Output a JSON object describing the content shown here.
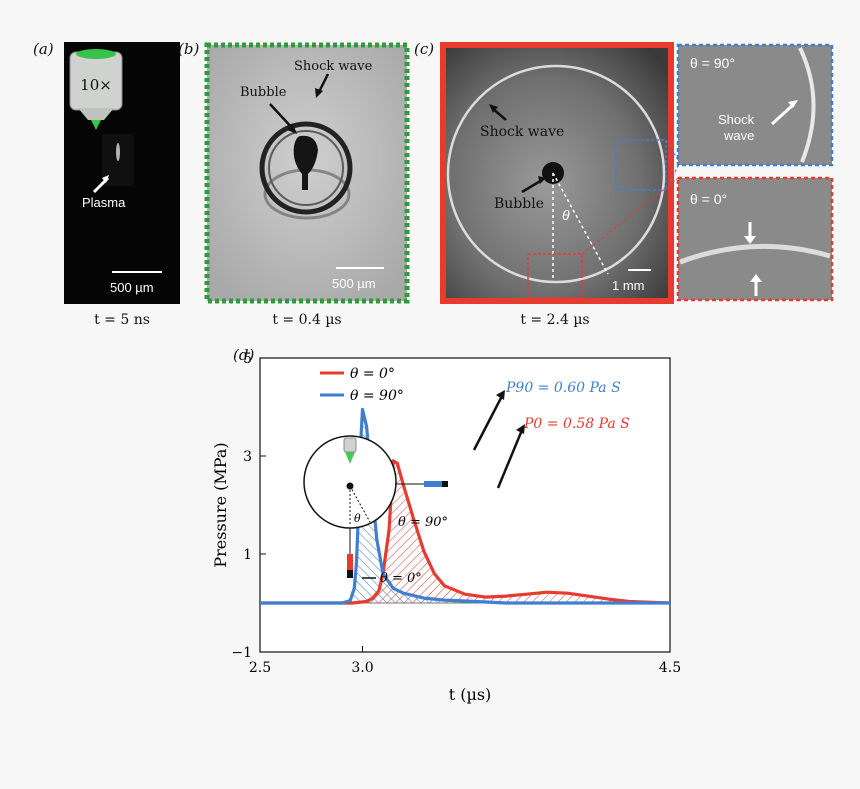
{
  "panels": {
    "a": {
      "label": "(a)",
      "objective": "10×",
      "plasma": "Plasma",
      "scale": "500 µm",
      "time": "t = 5 ns"
    },
    "b": {
      "label": "(b)",
      "shock": "Shock wave",
      "bubble": "Bubble",
      "scale": "500 µm",
      "time": "t = 0.4 µs"
    },
    "c": {
      "label": "(c)",
      "shock": "Shock wave",
      "bubble": "Bubble",
      "theta": "θ",
      "scale": "1 mm",
      "time": "t = 2.4 µs",
      "inset_top_angle": "θ = 90°",
      "inset_top_label_1": "Shock",
      "inset_top_label_2": "wave",
      "inset_bottom_angle": "θ = 0°"
    },
    "d": {
      "label": "(d)"
    }
  },
  "colors": {
    "series_0": "#e63b2e",
    "series_90": "#3f7fd0",
    "green": "#2e9c3c",
    "red_frame": "#e63b2e"
  },
  "chart_data": {
    "type": "line",
    "xlabel": "t (µs)",
    "ylabel": "Pressure (MPa)",
    "xlim": [
      2.5,
      4.5
    ],
    "ylim": [
      -1,
      5
    ],
    "xticks": [
      "2.5",
      "3.0",
      "4.5"
    ],
    "yticks": [
      "−1",
      "1",
      "3",
      "5"
    ],
    "legend_position": "top-left",
    "series": [
      {
        "name": "θ = 0°",
        "color": "#e63b2e",
        "x": [
          2.5,
          2.95,
          3.02,
          3.05,
          3.08,
          3.1,
          3.13,
          3.15,
          3.17,
          3.2,
          3.25,
          3.3,
          3.35,
          3.4,
          3.5,
          3.6,
          3.7,
          3.8,
          3.9,
          4.0,
          4.1,
          4.2,
          4.3,
          4.5
        ],
        "y": [
          0.0,
          0.0,
          0.03,
          0.1,
          0.25,
          0.6,
          1.5,
          2.9,
          2.85,
          2.4,
          1.7,
          1.05,
          0.6,
          0.35,
          0.18,
          0.12,
          0.14,
          0.18,
          0.22,
          0.2,
          0.14,
          0.08,
          0.03,
          0.0
        ]
      },
      {
        "name": "θ = 90°",
        "color": "#3f7fd0",
        "x": [
          2.5,
          2.9,
          2.94,
          2.96,
          2.97,
          2.98,
          2.99,
          3.0,
          3.02,
          3.04,
          3.07,
          3.1,
          3.15,
          3.2,
          3.3,
          3.4,
          3.5,
          3.6,
          3.7,
          3.8,
          4.0,
          4.2,
          4.5
        ],
        "y": [
          0.0,
          0.0,
          0.05,
          0.3,
          0.8,
          1.8,
          3.2,
          3.95,
          3.6,
          2.6,
          1.3,
          0.6,
          0.3,
          0.2,
          0.1,
          0.06,
          0.04,
          0.02,
          0.0,
          0.0,
          0.0,
          0.0,
          0.0
        ]
      }
    ],
    "annotations": [
      {
        "text": "P90 = 0.60 Pa S",
        "series": "θ = 90°"
      },
      {
        "text": "P0 = 0.58 Pa S",
        "series": "θ = 0°"
      }
    ],
    "schematic_labels": {
      "angle_90": "θ = 90°",
      "angle_0": "θ = 0°",
      "theta": "θ"
    }
  }
}
